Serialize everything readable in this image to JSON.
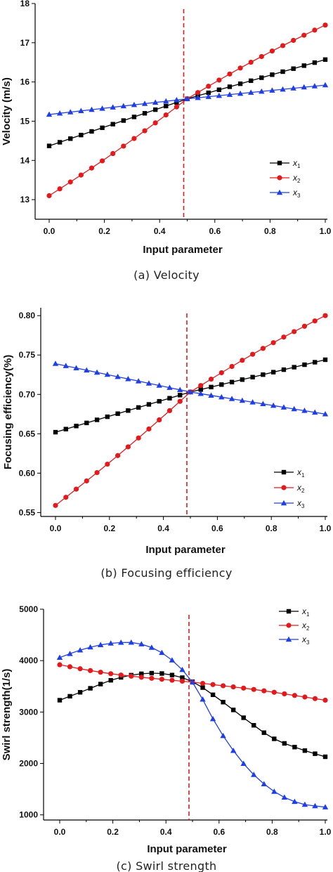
{
  "chart_data": [
    {
      "type": "line",
      "caption": "(a) Velocity",
      "xlabel": "Input parameter",
      "ylabel": "Velocity (m/s)",
      "xlim": [
        0.0,
        1.0
      ],
      "ylim": [
        12.5,
        18
      ],
      "xticks": [
        "0.0",
        "0.2",
        "0.4",
        "0.6",
        "0.8",
        "1.0"
      ],
      "yticks": [
        "13",
        "14",
        "15",
        "16",
        "17",
        "18"
      ],
      "vline_x": 0.5,
      "legend_position": "bottom-right",
      "series": [
        {
          "name": "x",
          "subscript": "1",
          "color": "#000000",
          "marker": "square",
          "y_start": 14.37,
          "y_end": 16.57,
          "y_mid": 15.57
        },
        {
          "name": "x",
          "subscript": "2",
          "color": "#e31a1c",
          "marker": "circle",
          "y_start": 13.1,
          "y_end": 17.45,
          "y_mid": 15.57
        },
        {
          "name": "x",
          "subscript": "3",
          "color": "#1f3fe6",
          "marker": "triangle",
          "y_start": 15.17,
          "y_end": 15.92,
          "y_mid": 15.57
        }
      ]
    },
    {
      "type": "line",
      "caption": "(b) Focusing efficiency",
      "xlabel": "Input parameter",
      "ylabel": "Focusing efficiency(%)",
      "xlim": [
        0.0,
        1.0
      ],
      "ylim": [
        0.545,
        0.81
      ],
      "xticks": [
        "0.0",
        "0.2",
        "0.4",
        "0.6",
        "0.8",
        "1.0"
      ],
      "yticks": [
        "0.55",
        "0.60",
        "0.65",
        "0.70",
        "0.75",
        "0.80"
      ],
      "vline_x": 0.5,
      "legend_position": "bottom-right",
      "series": [
        {
          "name": "x",
          "subscript": "1",
          "color": "#000000",
          "marker": "square",
          "y_start": 0.652,
          "y_end": 0.744,
          "y_mid": 0.703
        },
        {
          "name": "x",
          "subscript": "2",
          "color": "#e31a1c",
          "marker": "circle",
          "y_start": 0.559,
          "y_end": 0.8,
          "y_mid": 0.703
        },
        {
          "name": "x",
          "subscript": "3",
          "color": "#1f3fe6",
          "marker": "triangle",
          "y_start": 0.739,
          "y_end": 0.675,
          "y_mid": 0.703
        }
      ]
    },
    {
      "type": "line",
      "caption": "(c) Swirl strength",
      "xlabel": "Input parameter",
      "ylabel": "Swirl strength(1/s)",
      "xlim": [
        0.0,
        1.0
      ],
      "ylim": [
        900,
        5000
      ],
      "xticks": [
        "0.0",
        "0.2",
        "0.4",
        "0.6",
        "0.8",
        "1.0"
      ],
      "yticks": [
        "1000",
        "2000",
        "3000",
        "4000",
        "5000"
      ],
      "vline_x": 0.5,
      "legend_position": "top-right",
      "series": [
        {
          "name": "x",
          "subscript": "1",
          "color": "#000000",
          "marker": "square",
          "x": [
            0.0,
            0.1,
            0.2,
            0.3,
            0.4,
            0.5,
            0.6,
            0.7,
            0.8,
            0.9,
            1.0
          ],
          "y": [
            3230,
            3430,
            3630,
            3740,
            3740,
            3590,
            3250,
            2860,
            2500,
            2290,
            2130
          ]
        },
        {
          "name": "x",
          "subscript": "2",
          "color": "#e31a1c",
          "marker": "circle",
          "x": [
            0.0,
            0.1,
            0.2,
            0.3,
            0.4,
            0.5,
            0.6,
            0.7,
            0.8,
            0.9,
            1.0
          ],
          "y": [
            3920,
            3820,
            3740,
            3680,
            3630,
            3580,
            3520,
            3460,
            3390,
            3310,
            3230
          ]
        },
        {
          "name": "x",
          "subscript": "3",
          "color": "#1f3fe6",
          "marker": "triangle",
          "x": [
            0.0,
            0.1,
            0.2,
            0.3,
            0.4,
            0.5,
            0.6,
            0.7,
            0.8,
            0.9,
            1.0
          ],
          "y": [
            4060,
            4240,
            4340,
            4330,
            4100,
            3580,
            2660,
            1950,
            1480,
            1230,
            1150
          ]
        }
      ]
    }
  ]
}
